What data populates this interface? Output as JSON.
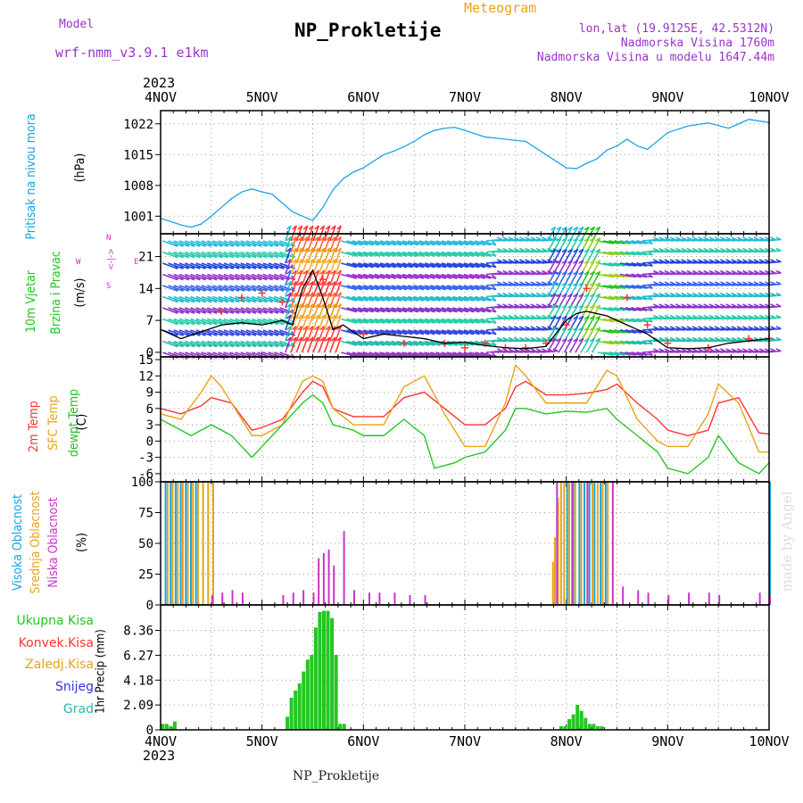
{
  "header": {
    "model_label": "Model",
    "model_name": "wrf-nmm_v3.9.1 e1km",
    "title": "NP_Prokletije",
    "meteogram_label": "Meteogram",
    "lonlat": "lon,lat (19.9125E, 42.5312N)",
    "station_alt": "Nadmorska Visina 1760m",
    "model_alt": "Nadmorska Visina u modelu 1647.44m",
    "year_top": "2023",
    "year_bottom": "2023",
    "footer": "NP_Prokletije",
    "watermark": "made by Angel"
  },
  "colors": {
    "pressure": "#1aa3e6",
    "red": "#ff3333",
    "orange": "#e8a317",
    "green": "#22c722",
    "magenta": "#cc33cc",
    "purple": "#9933cc",
    "blue": "#3333dd",
    "cyan": "#22bbaa",
    "skyblue": "#1aa3e6",
    "black": "#000000"
  },
  "panels": {
    "pressure": {
      "label": "Pritisak na nivou mora",
      "unit": "(hPa)"
    },
    "wind": {
      "label1": "10m Vjetar",
      "label2": "Brzina i Pravac",
      "unit": "(m/s)",
      "compass_n": "N",
      "compass_s": "S",
      "compass_w": "W",
      "compass_e": "E",
      "compass_sym": "<-|->"
    },
    "temp": {
      "label1": "2m Temp",
      "label2": "SFC Temp",
      "label3": "dewpt Temp",
      "unit": "(C)"
    },
    "cloud": {
      "label1": "Visoka Oblacnost",
      "label2": "Srednja Oblacnost",
      "label3": "Niska Oblacnost",
      "unit": "(%)"
    },
    "precip": {
      "legend": [
        "Ukupna Kisa",
        "Konvek.Kisa",
        "Zaledj.Kisa",
        "Snijeg",
        "Grad"
      ],
      "unit": "1hr Precip (mm)"
    }
  },
  "chart_data": [
    {
      "type": "line",
      "name": "pressure",
      "x_labels": [
        "4NOV",
        "5NOV",
        "6NOV",
        "7NOV",
        "8NOV",
        "9NOV",
        "10NOV"
      ],
      "ylabel": "(hPa)",
      "yticks": [
        1001,
        1008,
        1015,
        1022
      ],
      "ylim": [
        997,
        1025
      ],
      "series": [
        {
          "x": [
            0,
            0.1,
            0.2,
            0.3,
            0.4,
            0.5,
            0.6,
            0.7,
            0.8,
            0.9,
            1.0,
            1.1,
            1.2,
            1.3,
            1.4,
            1.5,
            1.6,
            1.7,
            1.8,
            1.9,
            2.0,
            2.1,
            2.2,
            2.3,
            2.4,
            2.5,
            2.6,
            2.7,
            2.8,
            2.9,
            3.0,
            3.2,
            3.4,
            3.6,
            3.8,
            4.0,
            4.1,
            4.2,
            4.3,
            4.4,
            4.5,
            4.6,
            4.7,
            4.8,
            5.0,
            5.2,
            5.4,
            5.6,
            5.8,
            6.0
          ],
          "y": [
            1000.5,
            999.8,
            999,
            998.5,
            999.2,
            1001,
            1003,
            1005,
            1006.5,
            1007.2,
            1006.5,
            1006,
            1004,
            1002,
            1001,
            1000,
            1003,
            1007,
            1009.5,
            1011,
            1012,
            1013.5,
            1015,
            1015.8,
            1016.8,
            1018,
            1019.5,
            1020.5,
            1021,
            1021.2,
            1020.5,
            1019,
            1018.5,
            1018,
            1015,
            1012,
            1011.8,
            1013,
            1014,
            1016,
            1017,
            1018.5,
            1017,
            1016.2,
            1020,
            1021.5,
            1022.2,
            1021,
            1023,
            1022.3
          ]
        }
      ]
    },
    {
      "type": "line",
      "name": "wind_speed",
      "x_labels": [
        "4NOV",
        "5NOV",
        "6NOV",
        "7NOV",
        "8NOV",
        "9NOV",
        "10NOV"
      ],
      "ylabel": "(m/s)",
      "yticks": [
        0,
        7,
        14,
        21
      ],
      "ylim": [
        -1,
        26
      ],
      "series": [
        {
          "name": "speed",
          "x": [
            0,
            0.2,
            0.4,
            0.6,
            0.8,
            1.0,
            1.2,
            1.3,
            1.4,
            1.5,
            1.6,
            1.7,
            1.8,
            2.0,
            2.2,
            2.4,
            2.6,
            2.8,
            3.0,
            3.2,
            3.4,
            3.6,
            3.8,
            4.0,
            4.1,
            4.2,
            4.3,
            4.4,
            4.5,
            4.6,
            4.7,
            4.8,
            5.0,
            5.2,
            5.4,
            5.6,
            5.8,
            6.0
          ],
          "y": [
            5,
            3,
            4.5,
            6,
            6.5,
            6,
            7,
            6,
            14,
            18,
            12,
            5,
            6,
            3,
            4,
            3.5,
            3,
            2,
            2.2,
            1.5,
            1,
            0.8,
            1.3,
            7,
            8.5,
            9,
            8.5,
            8,
            7,
            6,
            5,
            4,
            1,
            0.8,
            1,
            2,
            2.5,
            3
          ]
        },
        {
          "name": "gust",
          "x": [
            0.6,
            0.8,
            1.0,
            1.2,
            1.6,
            2.0,
            2.4,
            2.8,
            3.0,
            3.2,
            3.4,
            3.6,
            3.8,
            4.0,
            4.2,
            4.6,
            4.8,
            5.0,
            5.4,
            5.8,
            6.0
          ],
          "y": [
            9,
            12,
            13,
            11,
            16,
            4,
            2,
            2,
            1,
            2,
            1,
            1,
            2,
            6,
            14,
            12,
            6,
            2,
            1,
            3,
            3
          ]
        }
      ]
    },
    {
      "type": "line",
      "name": "temperature",
      "x_labels": [
        "4NOV",
        "5NOV",
        "6NOV",
        "7NOV",
        "8NOV",
        "9NOV",
        "10NOV"
      ],
      "ylabel": "(C)",
      "yticks": [
        -6,
        -3,
        0,
        3,
        6,
        9,
        12,
        15
      ],
      "ylim": [
        -7.5,
        15.5
      ],
      "series": [
        {
          "name": "2m Temp",
          "x": [
            0,
            0.2,
            0.4,
            0.5,
            0.7,
            0.9,
            1.0,
            1.2,
            1.4,
            1.5,
            1.6,
            1.7,
            1.9,
            2.0,
            2.2,
            2.4,
            2.6,
            2.8,
            3.0,
            3.2,
            3.4,
            3.5,
            3.6,
            3.8,
            4.0,
            4.2,
            4.4,
            4.5,
            4.7,
            4.9,
            5.0,
            5.2,
            5.4,
            5.5,
            5.7,
            5.9,
            6.0
          ],
          "y": [
            6,
            5,
            6.5,
            8,
            7,
            2,
            2.5,
            4,
            9,
            11,
            10,
            6,
            4.5,
            4.5,
            4.5,
            8,
            9,
            6,
            3,
            3,
            6,
            10,
            11,
            8.5,
            8.5,
            8.8,
            9.5,
            10.5,
            7,
            4,
            2,
            1,
            2,
            7,
            8,
            1.5,
            1.3
          ]
        },
        {
          "name": "SFC Temp",
          "x": [
            0,
            0.2,
            0.4,
            0.5,
            0.6,
            0.9,
            1.0,
            1.2,
            1.4,
            1.5,
            1.6,
            1.7,
            1.9,
            2.0,
            2.2,
            2.4,
            2.6,
            2.8,
            3.0,
            3.2,
            3.4,
            3.5,
            3.6,
            3.8,
            4.0,
            4.2,
            4.4,
            4.5,
            4.7,
            4.9,
            5.0,
            5.2,
            5.4,
            5.5,
            5.7,
            5.9,
            6.0
          ],
          "y": [
            5,
            4,
            9,
            12,
            10,
            1,
            1,
            3,
            11,
            12,
            11,
            6,
            3,
            3,
            3,
            10,
            12,
            5,
            -1,
            -1,
            7,
            14,
            12,
            7,
            7,
            7,
            13,
            12,
            4,
            0,
            -1,
            -1,
            5,
            10.5,
            7,
            -2,
            -2
          ]
        },
        {
          "name": "dewpt Temp",
          "x": [
            0,
            0.2,
            0.3,
            0.5,
            0.7,
            0.9,
            1.0,
            1.2,
            1.4,
            1.5,
            1.6,
            1.7,
            1.9,
            2.0,
            2.2,
            2.4,
            2.6,
            2.7,
            2.9,
            3.0,
            3.2,
            3.4,
            3.5,
            3.6,
            3.8,
            4.0,
            4.2,
            4.4,
            4.5,
            4.7,
            4.9,
            5.0,
            5.2,
            5.4,
            5.5,
            5.7,
            5.9,
            6.0
          ],
          "y": [
            4,
            2,
            1,
            3,
            1,
            -3,
            -1,
            3,
            7,
            8.5,
            7,
            3,
            2,
            1,
            1,
            4,
            1,
            -5,
            -4,
            -3,
            -2,
            2,
            6,
            6,
            5,
            5.5,
            5.3,
            6,
            4,
            1,
            -2,
            -5,
            -6,
            -3,
            1,
            -4,
            -6,
            -4
          ]
        }
      ]
    },
    {
      "type": "bar",
      "name": "cloud_cover",
      "x_labels": [
        "4NOV",
        "5NOV",
        "6NOV",
        "7NOV",
        "8NOV",
        "9NOV",
        "10NOV"
      ],
      "ylabel": "(%)",
      "yticks": [
        0,
        25,
        50,
        75,
        100
      ],
      "ylim": [
        0,
        100
      ],
      "series": [
        {
          "name": "Visoka Oblacnost",
          "x": [
            0.04,
            0.09,
            0.14,
            0.19,
            0.24,
            0.29,
            0.34,
            4.0,
            4.06,
            4.12,
            4.17,
            4.22,
            4.27,
            4.33,
            4.38,
            6.0
          ],
          "values": [
            100,
            100,
            100,
            100,
            100,
            100,
            100,
            100,
            100,
            100,
            100,
            100,
            100,
            100,
            100,
            100
          ]
        },
        {
          "name": "Srednja Oblacnost",
          "x": [
            0.06,
            0.11,
            0.16,
            0.21,
            0.26,
            0.31,
            0.36,
            0.41,
            0.46,
            0.51,
            3.86,
            3.88,
            3.91,
            3.94,
            3.97,
            4.02,
            4.08,
            4.14,
            4.2,
            4.25,
            4.3,
            4.35,
            4.4
          ],
          "values": [
            100,
            100,
            100,
            100,
            100,
            100,
            100,
            100,
            100,
            100,
            35,
            55,
            87,
            100,
            100,
            100,
            100,
            100,
            100,
            100,
            100,
            100,
            100
          ]
        },
        {
          "name": "Niska Oblacnost",
          "x": [
            0.5,
            0.6,
            0.7,
            0.8,
            1.2,
            1.3,
            1.4,
            1.5,
            1.55,
            1.6,
            1.65,
            1.7,
            1.8,
            1.9,
            2.05,
            2.15,
            2.3,
            2.45,
            2.6,
            3.9,
            4.05,
            4.2,
            4.45,
            4.55,
            4.7,
            4.8,
            5.0,
            5.2,
            5.4,
            5.5,
            5.9,
            6.0
          ],
          "values": [
            8,
            10,
            12,
            10,
            8,
            10,
            12,
            10,
            38,
            42,
            45,
            32,
            60,
            12,
            10,
            10,
            10,
            8,
            8,
            100,
            100,
            100,
            100,
            15,
            12,
            10,
            8,
            10,
            10,
            8,
            10,
            8
          ]
        }
      ]
    },
    {
      "type": "bar",
      "name": "precipitation",
      "x_labels": [
        "4NOV",
        "5NOV",
        "6NOV",
        "7NOV",
        "8NOV",
        "9NOV",
        "10NOV"
      ],
      "ylabel": "1hr Precip (mm)",
      "yticks": [
        0,
        2.09,
        4.18,
        6.27,
        8.36
      ],
      "ylim": [
        0,
        10.5
      ],
      "series": [
        {
          "name": "Ukupna Kisa",
          "x": [
            0.02,
            0.06,
            0.1,
            0.14,
            1.25,
            1.29,
            1.33,
            1.37,
            1.41,
            1.45,
            1.49,
            1.53,
            1.57,
            1.61,
            1.65,
            1.69,
            1.73,
            1.77,
            1.81,
            3.95,
            3.99,
            4.03,
            4.07,
            4.11,
            4.15,
            4.19,
            4.23,
            4.27,
            4.31,
            4.35
          ],
          "values": [
            0.5,
            0.5,
            0.3,
            0.7,
            1.1,
            2.7,
            3.3,
            3.9,
            4.9,
            5.9,
            6.3,
            8.6,
            9.9,
            10.0,
            10.0,
            9.4,
            6.3,
            0.5,
            0.5,
            0.3,
            0.3,
            0.9,
            1.3,
            2.1,
            1.6,
            1.0,
            0.5,
            0.5,
            0.3,
            0.3
          ]
        }
      ]
    }
  ]
}
